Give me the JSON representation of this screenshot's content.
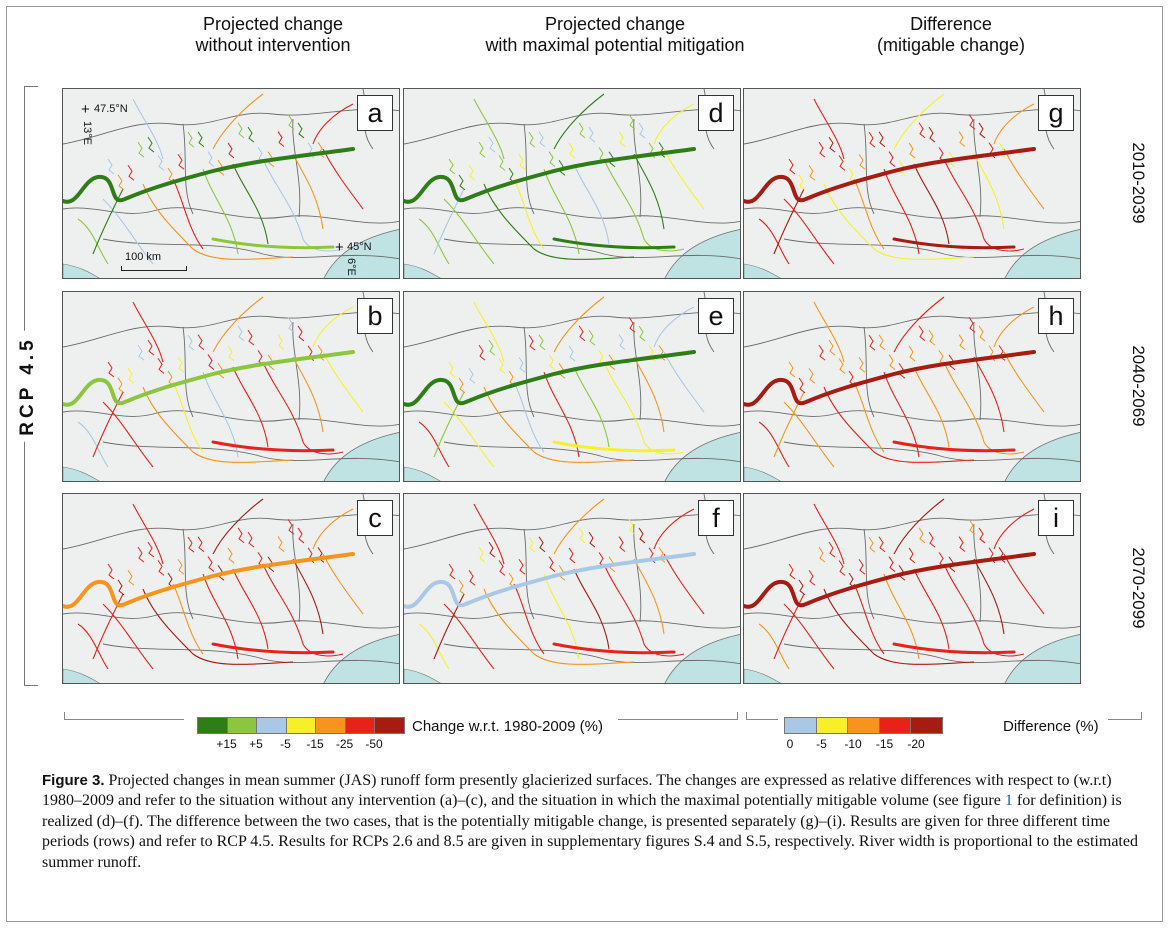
{
  "columns": [
    {
      "line1": "Projected change",
      "line2": "without intervention"
    },
    {
      "line1": "Projected change",
      "line2": "with maximal potential mitigation"
    },
    {
      "line1": "Difference",
      "line2": "(mitigable change)"
    }
  ],
  "scenario_label": "RCP 4.5",
  "periods": [
    "2010-2039",
    "2040-2069",
    "2070-2099"
  ],
  "panel_letters": [
    "a",
    "b",
    "c",
    "d",
    "e",
    "f",
    "g",
    "h",
    "i"
  ],
  "map_annotations": {
    "lat_north": "47.5°N",
    "lon_east": "13°E",
    "lat_south": "45°N",
    "lon_west": "6°E",
    "scale": "100 km"
  },
  "legend_change": {
    "title": "Change w.r.t. 1980-2009 (%)",
    "ticks": [
      "+15",
      "+5",
      "-5",
      "-15",
      "-25",
      "-50"
    ],
    "colors": [
      "#2e7d16",
      "#8cc63f",
      "#a9c8e6",
      "#f7f029",
      "#f7941d",
      "#e8211a",
      "#a61c12"
    ]
  },
  "legend_difference": {
    "title": "Difference (%)",
    "ticks": [
      "0",
      "-5",
      "-10",
      "-15",
      "-20"
    ],
    "colors": [
      "#a9c8e6",
      "#f7f029",
      "#f7941d",
      "#e8211a",
      "#a61c12"
    ]
  },
  "caption": {
    "label": "Figure 3.",
    "text_before_ref": "Projected changes in mean summer (JAS) runoff form presently glacierized surfaces. The changes are expressed as relative differences with respect to (w.r.t) 1980–2009 and refer to the situation without any intervention (a)–(c), and the situation in which the maximal potentially mitigable volume (see figure ",
    "ref": "1",
    "text_after_ref": " for definition) is realized (d)–(f). The difference between the two cases, that is the potentially mitigable change, is presented separately (g)–(i). Results are given for three different time periods (rows) and refer to RCP 4.5. Results for RCPs 2.6 and 8.5 are given in supplementary figures S.4 and S.5, respectively. River width is proportional to the estimated summer runoff."
  },
  "panel_colors": {
    "a": {
      "main": "#2e7d16",
      "alt": "#8cc63f",
      "mix": [
        "#a9c8e6",
        "#f7941d",
        "#e8211a",
        "#8cc63f",
        "#2e7d16"
      ]
    },
    "b": {
      "main": "#8cc63f",
      "alt": "#e8211a",
      "mix": [
        "#e8211a",
        "#f7941d",
        "#f7f029",
        "#a9c8e6",
        "#e8211a"
      ]
    },
    "c": {
      "main": "#f7941d",
      "alt": "#e8211a",
      "mix": [
        "#e8211a",
        "#a61c12",
        "#f7941d",
        "#e8211a",
        "#e8211a"
      ]
    },
    "d": {
      "main": "#2e7d16",
      "alt": "#2e7d16",
      "mix": [
        "#8cc63f",
        "#2e7d16",
        "#f7f029",
        "#8cc63f",
        "#a9c8e6"
      ]
    },
    "e": {
      "main": "#2e7d16",
      "alt": "#f7f029",
      "mix": [
        "#f7f029",
        "#f7941d",
        "#a9c8e6",
        "#e8211a",
        "#8cc63f"
      ]
    },
    "f": {
      "main": "#a9c8e6",
      "alt": "#e8211a",
      "mix": [
        "#e8211a",
        "#f7941d",
        "#e8211a",
        "#f7f029",
        "#a61c12"
      ]
    },
    "g": {
      "main": "#a61c12",
      "alt": "#a61c12",
      "mix": [
        "#e8211a",
        "#f7f029",
        "#f7941d",
        "#e8211a",
        "#a61c12"
      ]
    },
    "h": {
      "main": "#a61c12",
      "alt": "#e8211a",
      "mix": [
        "#f7941d",
        "#e8211a",
        "#f7941d",
        "#e8211a",
        "#f7941d"
      ]
    },
    "i": {
      "main": "#a61c12",
      "alt": "#e8211a",
      "mix": [
        "#e8211a",
        "#a61c12",
        "#e8211a",
        "#f7941d",
        "#e8211a"
      ]
    }
  }
}
